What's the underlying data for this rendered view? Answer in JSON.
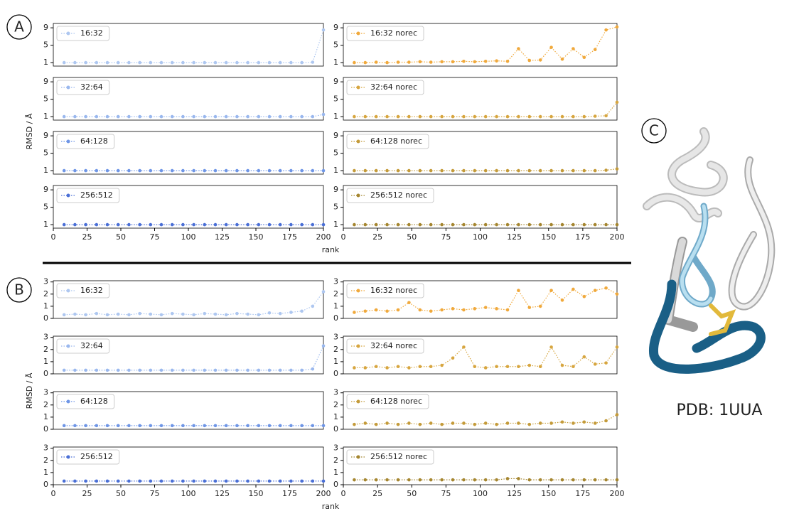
{
  "labels": {
    "a": "A",
    "b": "B",
    "c": "C",
    "pdb": "PDB: 1UUA"
  },
  "chart_data": [
    {
      "type": "line",
      "series": [
        {
          "name": "16:32",
          "color": "#aec7f0",
          "values": [
            1,
            1,
            1,
            1,
            1,
            1,
            1,
            1,
            1,
            1,
            1,
            1,
            1,
            1,
            1,
            1,
            1,
            1,
            1,
            1,
            1,
            1,
            1,
            1.1,
            8.5
          ]
        }
      ],
      "x": [
        8,
        16,
        24,
        32,
        40,
        48,
        56,
        64,
        72,
        80,
        88,
        96,
        104,
        112,
        120,
        128,
        136,
        144,
        152,
        160,
        168,
        176,
        184,
        192,
        200
      ],
      "xlim": [
        0,
        200
      ],
      "ylim": [
        0.2,
        10
      ],
      "yticks": [
        1,
        5,
        9
      ]
    },
    {
      "type": "line",
      "series": [
        {
          "name": "32:64",
          "color": "#9ab8ee",
          "values": [
            1,
            1,
            1,
            1,
            1,
            1,
            1,
            1,
            1,
            1,
            1,
            1,
            1,
            1,
            1,
            1,
            1,
            1,
            1,
            1,
            1,
            1,
            1,
            1,
            1.5
          ]
        }
      ],
      "x": [
        8,
        16,
        24,
        32,
        40,
        48,
        56,
        64,
        72,
        80,
        88,
        96,
        104,
        112,
        120,
        128,
        136,
        144,
        152,
        160,
        168,
        176,
        184,
        192,
        200
      ],
      "xlim": [
        0,
        200
      ],
      "ylim": [
        0.2,
        10
      ],
      "yticks": [
        1,
        5,
        9
      ],
      "ylabel": "RMSD / Å"
    },
    {
      "type": "line",
      "series": [
        {
          "name": "64:128",
          "color": "#6f96e6",
          "values": [
            1,
            1,
            1,
            1,
            1,
            1,
            1,
            1,
            1,
            1,
            1,
            1,
            1,
            1,
            1,
            1,
            1,
            1,
            1,
            1,
            1,
            1,
            1,
            1,
            1
          ]
        }
      ],
      "x": [
        8,
        16,
        24,
        32,
        40,
        48,
        56,
        64,
        72,
        80,
        88,
        96,
        104,
        112,
        120,
        128,
        136,
        144,
        152,
        160,
        168,
        176,
        184,
        192,
        200
      ],
      "xlim": [
        0,
        200
      ],
      "ylim": [
        0.2,
        10
      ],
      "yticks": [
        1,
        5,
        9
      ]
    },
    {
      "type": "line",
      "series": [
        {
          "name": "256:512",
          "color": "#4a6fd6",
          "values": [
            1,
            1,
            1,
            1,
            1,
            1,
            1,
            1,
            1,
            1,
            1,
            1,
            1,
            1,
            1,
            1,
            1,
            1,
            1,
            1,
            1,
            1,
            1,
            1,
            1
          ]
        }
      ],
      "x": [
        8,
        16,
        24,
        32,
        40,
        48,
        56,
        64,
        72,
        80,
        88,
        96,
        104,
        112,
        120,
        128,
        136,
        144,
        152,
        160,
        168,
        176,
        184,
        192,
        200
      ],
      "xlim": [
        0,
        200
      ],
      "ylim": [
        0.2,
        10
      ],
      "yticks": [
        1,
        5,
        9
      ],
      "xticks": [
        0,
        25,
        50,
        75,
        100,
        125,
        150,
        175,
        200
      ],
      "xlabel": "rank"
    },
    {
      "type": "line",
      "series": [
        {
          "name": "16:32 norec",
          "color": "#f0a93c",
          "values": [
            1,
            1,
            1.1,
            1,
            1.1,
            1.1,
            1.2,
            1.1,
            1.2,
            1.2,
            1.3,
            1.2,
            1.3,
            1.4,
            1.3,
            4.2,
            1.5,
            1.6,
            4.5,
            1.8,
            4.2,
            2.2,
            4,
            8.5,
            9.2
          ]
        }
      ],
      "x": [
        8,
        16,
        24,
        32,
        40,
        48,
        56,
        64,
        72,
        80,
        88,
        96,
        104,
        112,
        120,
        128,
        136,
        144,
        152,
        160,
        168,
        176,
        184,
        192,
        200
      ],
      "xlim": [
        0,
        200
      ],
      "ylim": [
        0.2,
        10
      ],
      "yticks": [
        1,
        5,
        9
      ]
    },
    {
      "type": "line",
      "series": [
        {
          "name": "32:64 norec",
          "color": "#d7a640",
          "values": [
            1,
            1,
            1,
            1,
            1,
            1,
            1,
            1,
            1,
            1,
            1,
            1,
            1,
            1,
            1,
            1,
            1,
            1,
            1,
            1,
            1,
            1,
            1.1,
            1.2,
            4.3
          ]
        }
      ],
      "x": [
        8,
        16,
        24,
        32,
        40,
        48,
        56,
        64,
        72,
        80,
        88,
        96,
        104,
        112,
        120,
        128,
        136,
        144,
        152,
        160,
        168,
        176,
        184,
        192,
        200
      ],
      "xlim": [
        0,
        200
      ],
      "ylim": [
        0.2,
        10
      ],
      "yticks": [
        1,
        5,
        9
      ]
    },
    {
      "type": "line",
      "series": [
        {
          "name": "64:128 norec",
          "color": "#c49b3a",
          "values": [
            1,
            1,
            1,
            1,
            1,
            1,
            1,
            1,
            1,
            1,
            1,
            1,
            1,
            1,
            1,
            1,
            1,
            1,
            1,
            1,
            1,
            1,
            1,
            1.1,
            1.4
          ]
        }
      ],
      "x": [
        8,
        16,
        24,
        32,
        40,
        48,
        56,
        64,
        72,
        80,
        88,
        96,
        104,
        112,
        120,
        128,
        136,
        144,
        152,
        160,
        168,
        176,
        184,
        192,
        200
      ],
      "xlim": [
        0,
        200
      ],
      "ylim": [
        0.2,
        10
      ],
      "yticks": [
        1,
        5,
        9
      ]
    },
    {
      "type": "line",
      "series": [
        {
          "name": "256:512 norec",
          "color": "#a58630",
          "values": [
            1,
            1,
            1,
            1,
            1,
            1,
            1,
            1,
            1,
            1,
            1,
            1,
            1,
            1,
            1,
            1,
            1,
            1,
            1,
            1,
            1,
            1,
            1,
            1,
            1
          ]
        }
      ],
      "x": [
        8,
        16,
        24,
        32,
        40,
        48,
        56,
        64,
        72,
        80,
        88,
        96,
        104,
        112,
        120,
        128,
        136,
        144,
        152,
        160,
        168,
        176,
        184,
        192,
        200
      ],
      "xlim": [
        0,
        200
      ],
      "ylim": [
        0.2,
        10
      ],
      "yticks": [
        1,
        5,
        9
      ],
      "xticks": [
        0,
        25,
        50,
        75,
        100,
        125,
        150,
        175,
        200
      ]
    },
    {
      "type": "line",
      "series": [
        {
          "name": "16:32",
          "color": "#aec7f0",
          "values": [
            0.3,
            0.35,
            0.3,
            0.4,
            0.3,
            0.35,
            0.3,
            0.4,
            0.35,
            0.3,
            0.4,
            0.35,
            0.3,
            0.4,
            0.35,
            0.3,
            0.4,
            0.35,
            0.3,
            0.45,
            0.4,
            0.5,
            0.6,
            1,
            2.2
          ]
        }
      ],
      "x": [
        8,
        16,
        24,
        32,
        40,
        48,
        56,
        64,
        72,
        80,
        88,
        96,
        104,
        112,
        120,
        128,
        136,
        144,
        152,
        160,
        168,
        176,
        184,
        192,
        200
      ],
      "xlim": [
        0,
        200
      ],
      "ylim": [
        0,
        3.1
      ],
      "yticks": [
        0,
        1,
        2,
        3
      ]
    },
    {
      "type": "line",
      "series": [
        {
          "name": "32:64",
          "color": "#9ab8ee",
          "values": [
            0.3,
            0.3,
            0.3,
            0.3,
            0.3,
            0.3,
            0.3,
            0.3,
            0.3,
            0.3,
            0.3,
            0.3,
            0.3,
            0.3,
            0.3,
            0.3,
            0.3,
            0.3,
            0.3,
            0.3,
            0.3,
            0.3,
            0.3,
            0.4,
            2.3
          ]
        }
      ],
      "x": [
        8,
        16,
        24,
        32,
        40,
        48,
        56,
        64,
        72,
        80,
        88,
        96,
        104,
        112,
        120,
        128,
        136,
        144,
        152,
        160,
        168,
        176,
        184,
        192,
        200
      ],
      "xlim": [
        0,
        200
      ],
      "ylim": [
        0,
        3.1
      ],
      "yticks": [
        0,
        1,
        2,
        3
      ],
      "ylabel": "RMSD / Å"
    },
    {
      "type": "line",
      "series": [
        {
          "name": "64:128",
          "color": "#6f96e6",
          "values": [
            0.3,
            0.3,
            0.3,
            0.3,
            0.3,
            0.3,
            0.3,
            0.3,
            0.3,
            0.3,
            0.3,
            0.3,
            0.3,
            0.3,
            0.3,
            0.3,
            0.3,
            0.3,
            0.3,
            0.3,
            0.3,
            0.3,
            0.3,
            0.3,
            0.3
          ]
        }
      ],
      "x": [
        8,
        16,
        24,
        32,
        40,
        48,
        56,
        64,
        72,
        80,
        88,
        96,
        104,
        112,
        120,
        128,
        136,
        144,
        152,
        160,
        168,
        176,
        184,
        192,
        200
      ],
      "xlim": [
        0,
        200
      ],
      "ylim": [
        0,
        3.1
      ],
      "yticks": [
        0,
        1,
        2,
        3
      ]
    },
    {
      "type": "line",
      "series": [
        {
          "name": "256:512",
          "color": "#4a6fd6",
          "values": [
            0.3,
            0.3,
            0.3,
            0.3,
            0.3,
            0.3,
            0.3,
            0.3,
            0.3,
            0.3,
            0.3,
            0.3,
            0.3,
            0.3,
            0.3,
            0.3,
            0.3,
            0.3,
            0.3,
            0.3,
            0.3,
            0.3,
            0.3,
            0.3,
            0.3
          ]
        }
      ],
      "x": [
        8,
        16,
        24,
        32,
        40,
        48,
        56,
        64,
        72,
        80,
        88,
        96,
        104,
        112,
        120,
        128,
        136,
        144,
        152,
        160,
        168,
        176,
        184,
        192,
        200
      ],
      "xlim": [
        0,
        200
      ],
      "ylim": [
        0,
        3.1
      ],
      "yticks": [
        0,
        1,
        2,
        3
      ],
      "xticks": [
        0,
        25,
        50,
        75,
        100,
        125,
        150,
        175,
        200
      ],
      "xlabel": "rank"
    },
    {
      "type": "line",
      "series": [
        {
          "name": "16:32 norec",
          "color": "#f0a93c",
          "values": [
            0.5,
            0.6,
            0.7,
            0.6,
            0.7,
            1.3,
            0.7,
            0.6,
            0.7,
            0.8,
            0.7,
            0.8,
            0.9,
            0.8,
            0.7,
            2.3,
            0.9,
            1,
            2.3,
            1.5,
            2.4,
            1.8,
            2.3,
            2.5,
            2
          ]
        }
      ],
      "x": [
        8,
        16,
        24,
        32,
        40,
        48,
        56,
        64,
        72,
        80,
        88,
        96,
        104,
        112,
        120,
        128,
        136,
        144,
        152,
        160,
        168,
        176,
        184,
        192,
        200
      ],
      "xlim": [
        0,
        200
      ],
      "ylim": [
        0,
        3.1
      ],
      "yticks": [
        0,
        1,
        2,
        3
      ]
    },
    {
      "type": "line",
      "series": [
        {
          "name": "32:64 norec",
          "color": "#d7a640",
          "values": [
            0.5,
            0.5,
            0.6,
            0.5,
            0.6,
            0.5,
            0.6,
            0.6,
            0.7,
            1.3,
            2.2,
            0.6,
            0.5,
            0.6,
            0.6,
            0.6,
            0.7,
            0.6,
            2.2,
            0.7,
            0.6,
            1.4,
            0.8,
            0.9,
            2.2
          ]
        }
      ],
      "x": [
        8,
        16,
        24,
        32,
        40,
        48,
        56,
        64,
        72,
        80,
        88,
        96,
        104,
        112,
        120,
        128,
        136,
        144,
        152,
        160,
        168,
        176,
        184,
        192,
        200
      ],
      "xlim": [
        0,
        200
      ],
      "ylim": [
        0,
        3.1
      ],
      "yticks": [
        0,
        1,
        2,
        3
      ]
    },
    {
      "type": "line",
      "series": [
        {
          "name": "64:128 norec",
          "color": "#c49b3a",
          "values": [
            0.4,
            0.5,
            0.4,
            0.5,
            0.4,
            0.5,
            0.4,
            0.5,
            0.4,
            0.5,
            0.5,
            0.4,
            0.5,
            0.4,
            0.5,
            0.5,
            0.4,
            0.5,
            0.5,
            0.6,
            0.5,
            0.6,
            0.5,
            0.7,
            1.2
          ]
        }
      ],
      "x": [
        8,
        16,
        24,
        32,
        40,
        48,
        56,
        64,
        72,
        80,
        88,
        96,
        104,
        112,
        120,
        128,
        136,
        144,
        152,
        160,
        168,
        176,
        184,
        192,
        200
      ],
      "xlim": [
        0,
        200
      ],
      "ylim": [
        0,
        3.1
      ],
      "yticks": [
        0,
        1,
        2,
        3
      ]
    },
    {
      "type": "line",
      "series": [
        {
          "name": "256:512 norec",
          "color": "#a58630",
          "values": [
            0.4,
            0.4,
            0.4,
            0.4,
            0.4,
            0.4,
            0.4,
            0.4,
            0.4,
            0.4,
            0.4,
            0.4,
            0.4,
            0.4,
            0.5,
            0.5,
            0.4,
            0.4,
            0.4,
            0.4,
            0.4,
            0.4,
            0.4,
            0.4,
            0.4
          ]
        }
      ],
      "x": [
        8,
        16,
        24,
        32,
        40,
        48,
        56,
        64,
        72,
        80,
        88,
        96,
        104,
        112,
        120,
        128,
        136,
        144,
        152,
        160,
        168,
        176,
        184,
        192,
        200
      ],
      "xlim": [
        0,
        200
      ],
      "ylim": [
        0,
        3.1
      ],
      "yticks": [
        0,
        1,
        2,
        3
      ],
      "xticks": [
        0,
        25,
        50,
        75,
        100,
        125,
        150,
        175,
        200
      ]
    }
  ]
}
